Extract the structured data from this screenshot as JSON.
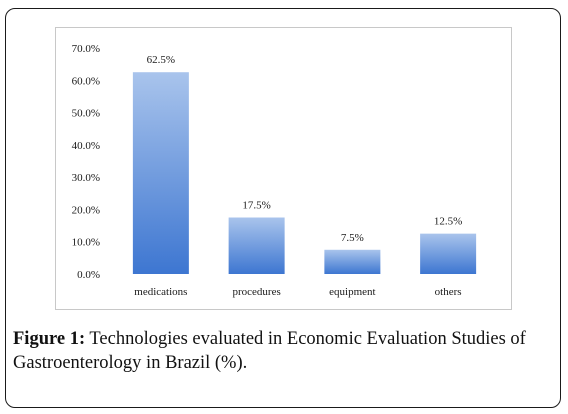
{
  "chart_data": {
    "type": "bar",
    "categories": [
      "medications",
      "procedures",
      "equipment",
      "others"
    ],
    "values": [
      62.5,
      17.5,
      7.5,
      12.5
    ],
    "data_labels": [
      "62.5%",
      "17.5%",
      "7.5%",
      "12.5%"
    ],
    "y_ticks": [
      "0.0%",
      "10.0%",
      "20.0%",
      "30.0%",
      "40.0%",
      "50.0%",
      "60.0%",
      "70.0%"
    ],
    "ylim": [
      0,
      70
    ],
    "grid": false,
    "bar_color_top": "#a9c4ec",
    "bar_color_bottom": "#3d76d1"
  },
  "caption": {
    "figure_label": "Figure 1:",
    "text": "Technologies evaluated in Economic Evaluation Studies of Gastroenterology in Brazil (%)."
  }
}
